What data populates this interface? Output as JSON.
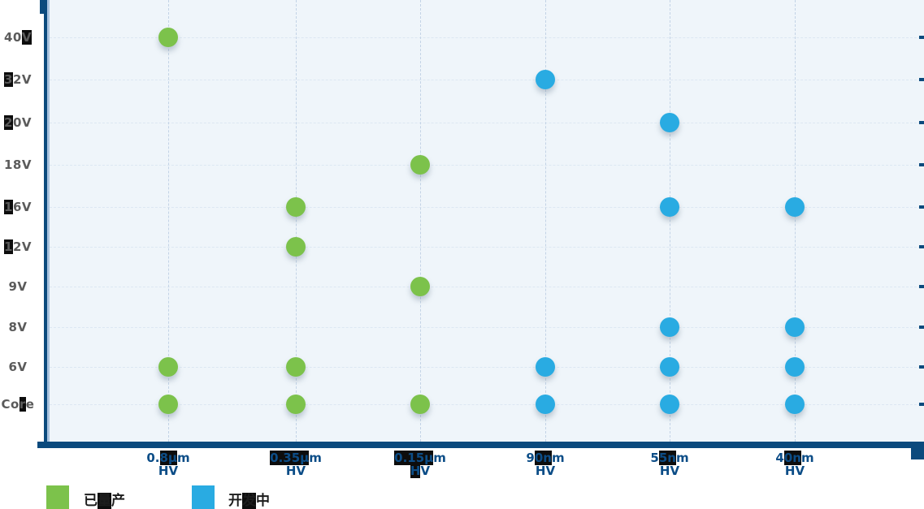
{
  "chart_data": {
    "type": "scatter",
    "title": "",
    "x_categories": [
      "0.8μm",
      "0.35μm",
      "0.15μm",
      "90nm",
      "55nm",
      "40nm"
    ],
    "x_axis_sublabel": "HV",
    "y_categories_top_to_bottom": [
      "40V",
      "32V",
      "20V",
      "18V",
      "16V",
      "12V",
      "9V",
      "8V",
      "6V",
      "Core"
    ],
    "grid": "dashed",
    "legend_position": "bottom-left",
    "series": [
      {
        "name": "已量产",
        "color": "#7CC24B",
        "points": [
          {
            "x": "0.8μm",
            "y": "40V"
          },
          {
            "x": "0.8μm",
            "y": "6V"
          },
          {
            "x": "0.8μm",
            "y": "Core"
          },
          {
            "x": "0.35μm",
            "y": "16V"
          },
          {
            "x": "0.35μm",
            "y": "12V"
          },
          {
            "x": "0.35μm",
            "y": "6V"
          },
          {
            "x": "0.35μm",
            "y": "Core"
          },
          {
            "x": "0.15μm",
            "y": "18V"
          },
          {
            "x": "0.15μm",
            "y": "9V"
          },
          {
            "x": "0.15μm",
            "y": "Core"
          }
        ]
      },
      {
        "name": "开发中",
        "color": "#29ABE2",
        "points": [
          {
            "x": "90nm",
            "y": "32V"
          },
          {
            "x": "90nm",
            "y": "6V"
          },
          {
            "x": "90nm",
            "y": "Core"
          },
          {
            "x": "55nm",
            "y": "20V"
          },
          {
            "x": "55nm",
            "y": "16V"
          },
          {
            "x": "55nm",
            "y": "8V"
          },
          {
            "x": "55nm",
            "y": "6V"
          },
          {
            "x": "55nm",
            "y": "Core"
          },
          {
            "x": "40nm",
            "y": "16V"
          },
          {
            "x": "40nm",
            "y": "8V"
          },
          {
            "x": "40nm",
            "y": "6V"
          },
          {
            "x": "40nm",
            "y": "Core"
          }
        ]
      }
    ]
  },
  "colors": {
    "axis": "#0B4A7D",
    "plot_background": "#EFF5FA",
    "h_gridline": "#DCE7F2",
    "v_gridline": "#C3D3E6",
    "y_label_text": "#5B5B5B",
    "x_label_text": "#0C4D87",
    "legend_text": "#1C1C1C",
    "highlight_box": "#0D0D0D",
    "series_green": "#7CC24B",
    "series_blue": "#29ABE2"
  },
  "y_axis_labels": [
    [
      {
        "t": "40",
        "h": false
      },
      {
        "t": "V",
        "h": true
      }
    ],
    [
      {
        "t": "3",
        "h": true
      },
      {
        "t": "2V",
        "h": false
      }
    ],
    [
      {
        "t": "2",
        "h": true
      },
      {
        "t": "0V",
        "h": false
      }
    ],
    [
      {
        "t": "18V",
        "h": false
      }
    ],
    [
      {
        "t": "1",
        "h": true
      },
      {
        "t": "6V",
        "h": false
      }
    ],
    [
      {
        "t": "1",
        "h": true
      },
      {
        "t": "2V",
        "h": false
      }
    ],
    [
      {
        "t": "9V",
        "h": false
      }
    ],
    [
      {
        "t": "8V",
        "h": false
      }
    ],
    [
      {
        "t": "6V",
        "h": false
      }
    ],
    [
      {
        "t": "Co",
        "h": false
      },
      {
        "t": "r",
        "h": true
      },
      {
        "t": "e",
        "h": false
      }
    ]
  ],
  "x_axis_labels": [
    {
      "line1": [
        {
          "t": "0.",
          "h": false
        },
        {
          "t": "8μ",
          "h": true
        },
        {
          "t": "m",
          "h": false
        }
      ],
      "line2": [
        {
          "t": "HV",
          "h": false
        }
      ]
    },
    {
      "line1": [
        {
          "t": "0.35μ",
          "h": true
        },
        {
          "t": "m",
          "h": false
        }
      ],
      "line2": [
        {
          "t": "HV",
          "h": false
        }
      ]
    },
    {
      "line1": [
        {
          "t": "0.15μ",
          "h": true
        },
        {
          "t": "m",
          "h": false
        }
      ],
      "line2": [
        {
          "t": "H",
          "h": true
        },
        {
          "t": "V",
          "h": false
        }
      ]
    },
    {
      "line1": [
        {
          "t": "9",
          "h": false
        },
        {
          "t": "0n",
          "h": true
        },
        {
          "t": "m",
          "h": false
        }
      ],
      "line2": [
        {
          "t": "HV",
          "h": false
        }
      ]
    },
    {
      "line1": [
        {
          "t": "5",
          "h": false
        },
        {
          "t": "5n",
          "h": true
        },
        {
          "t": "m",
          "h": false
        }
      ],
      "line2": [
        {
          "t": "HV",
          "h": false
        }
      ]
    },
    {
      "line1": [
        {
          "t": "4",
          "h": false
        },
        {
          "t": "0n",
          "h": true
        },
        {
          "t": "m",
          "h": false
        }
      ],
      "line2": [
        {
          "t": "HV",
          "h": false
        }
      ]
    }
  ],
  "legend": {
    "items": [
      {
        "label": "已量产",
        "color": "#7CC24B",
        "label_segments": [
          {
            "t": "已",
            "h": false
          },
          {
            "t": "量",
            "h": true
          },
          {
            "t": "产",
            "h": false
          }
        ]
      },
      {
        "label": "开发中",
        "color": "#29ABE2",
        "label_segments": [
          {
            "t": "开",
            "h": false
          },
          {
            "t": "发",
            "h": true
          },
          {
            "t": "中",
            "h": false
          }
        ]
      }
    ]
  }
}
